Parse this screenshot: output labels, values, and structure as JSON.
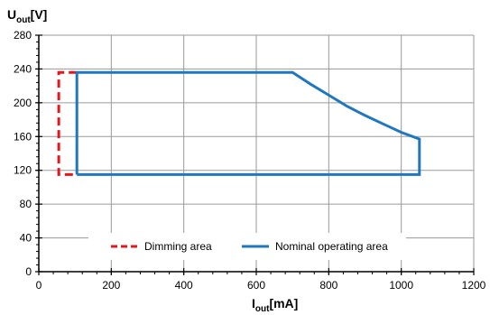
{
  "chart_data": {
    "type": "line",
    "y_axis_title": {
      "main": "U",
      "sub": "out",
      "unit": "[V]"
    },
    "x_axis_title": {
      "main": "I",
      "sub": "out",
      "unit": "[mA]"
    },
    "xlim": [
      0,
      1200
    ],
    "ylim": [
      0,
      280
    ],
    "x_ticks": [
      "0",
      "200",
      "400",
      "600",
      "800",
      "1000",
      "1200"
    ],
    "y_ticks": [
      "0",
      "40",
      "80",
      "120",
      "160",
      "200",
      "240",
      "280"
    ],
    "grid": true,
    "legend_position": "bottom-inside",
    "series": [
      {
        "name": "Dimming area",
        "style": "dashed",
        "color": "#e8141c",
        "points": [
          [
            105,
            236
          ],
          [
            55,
            236
          ],
          [
            55,
            115
          ],
          [
            105,
            115
          ]
        ]
      },
      {
        "name": "Nominal operating area",
        "style": "solid",
        "color": "#1f77c0",
        "points": [
          [
            105,
            115
          ],
          [
            105,
            236
          ],
          [
            700,
            236
          ],
          [
            750,
            222
          ],
          [
            800,
            209
          ],
          [
            850,
            196
          ],
          [
            900,
            185
          ],
          [
            950,
            175
          ],
          [
            1000,
            165
          ],
          [
            1050,
            157
          ],
          [
            1050,
            115
          ],
          [
            105,
            115
          ]
        ]
      }
    ]
  }
}
